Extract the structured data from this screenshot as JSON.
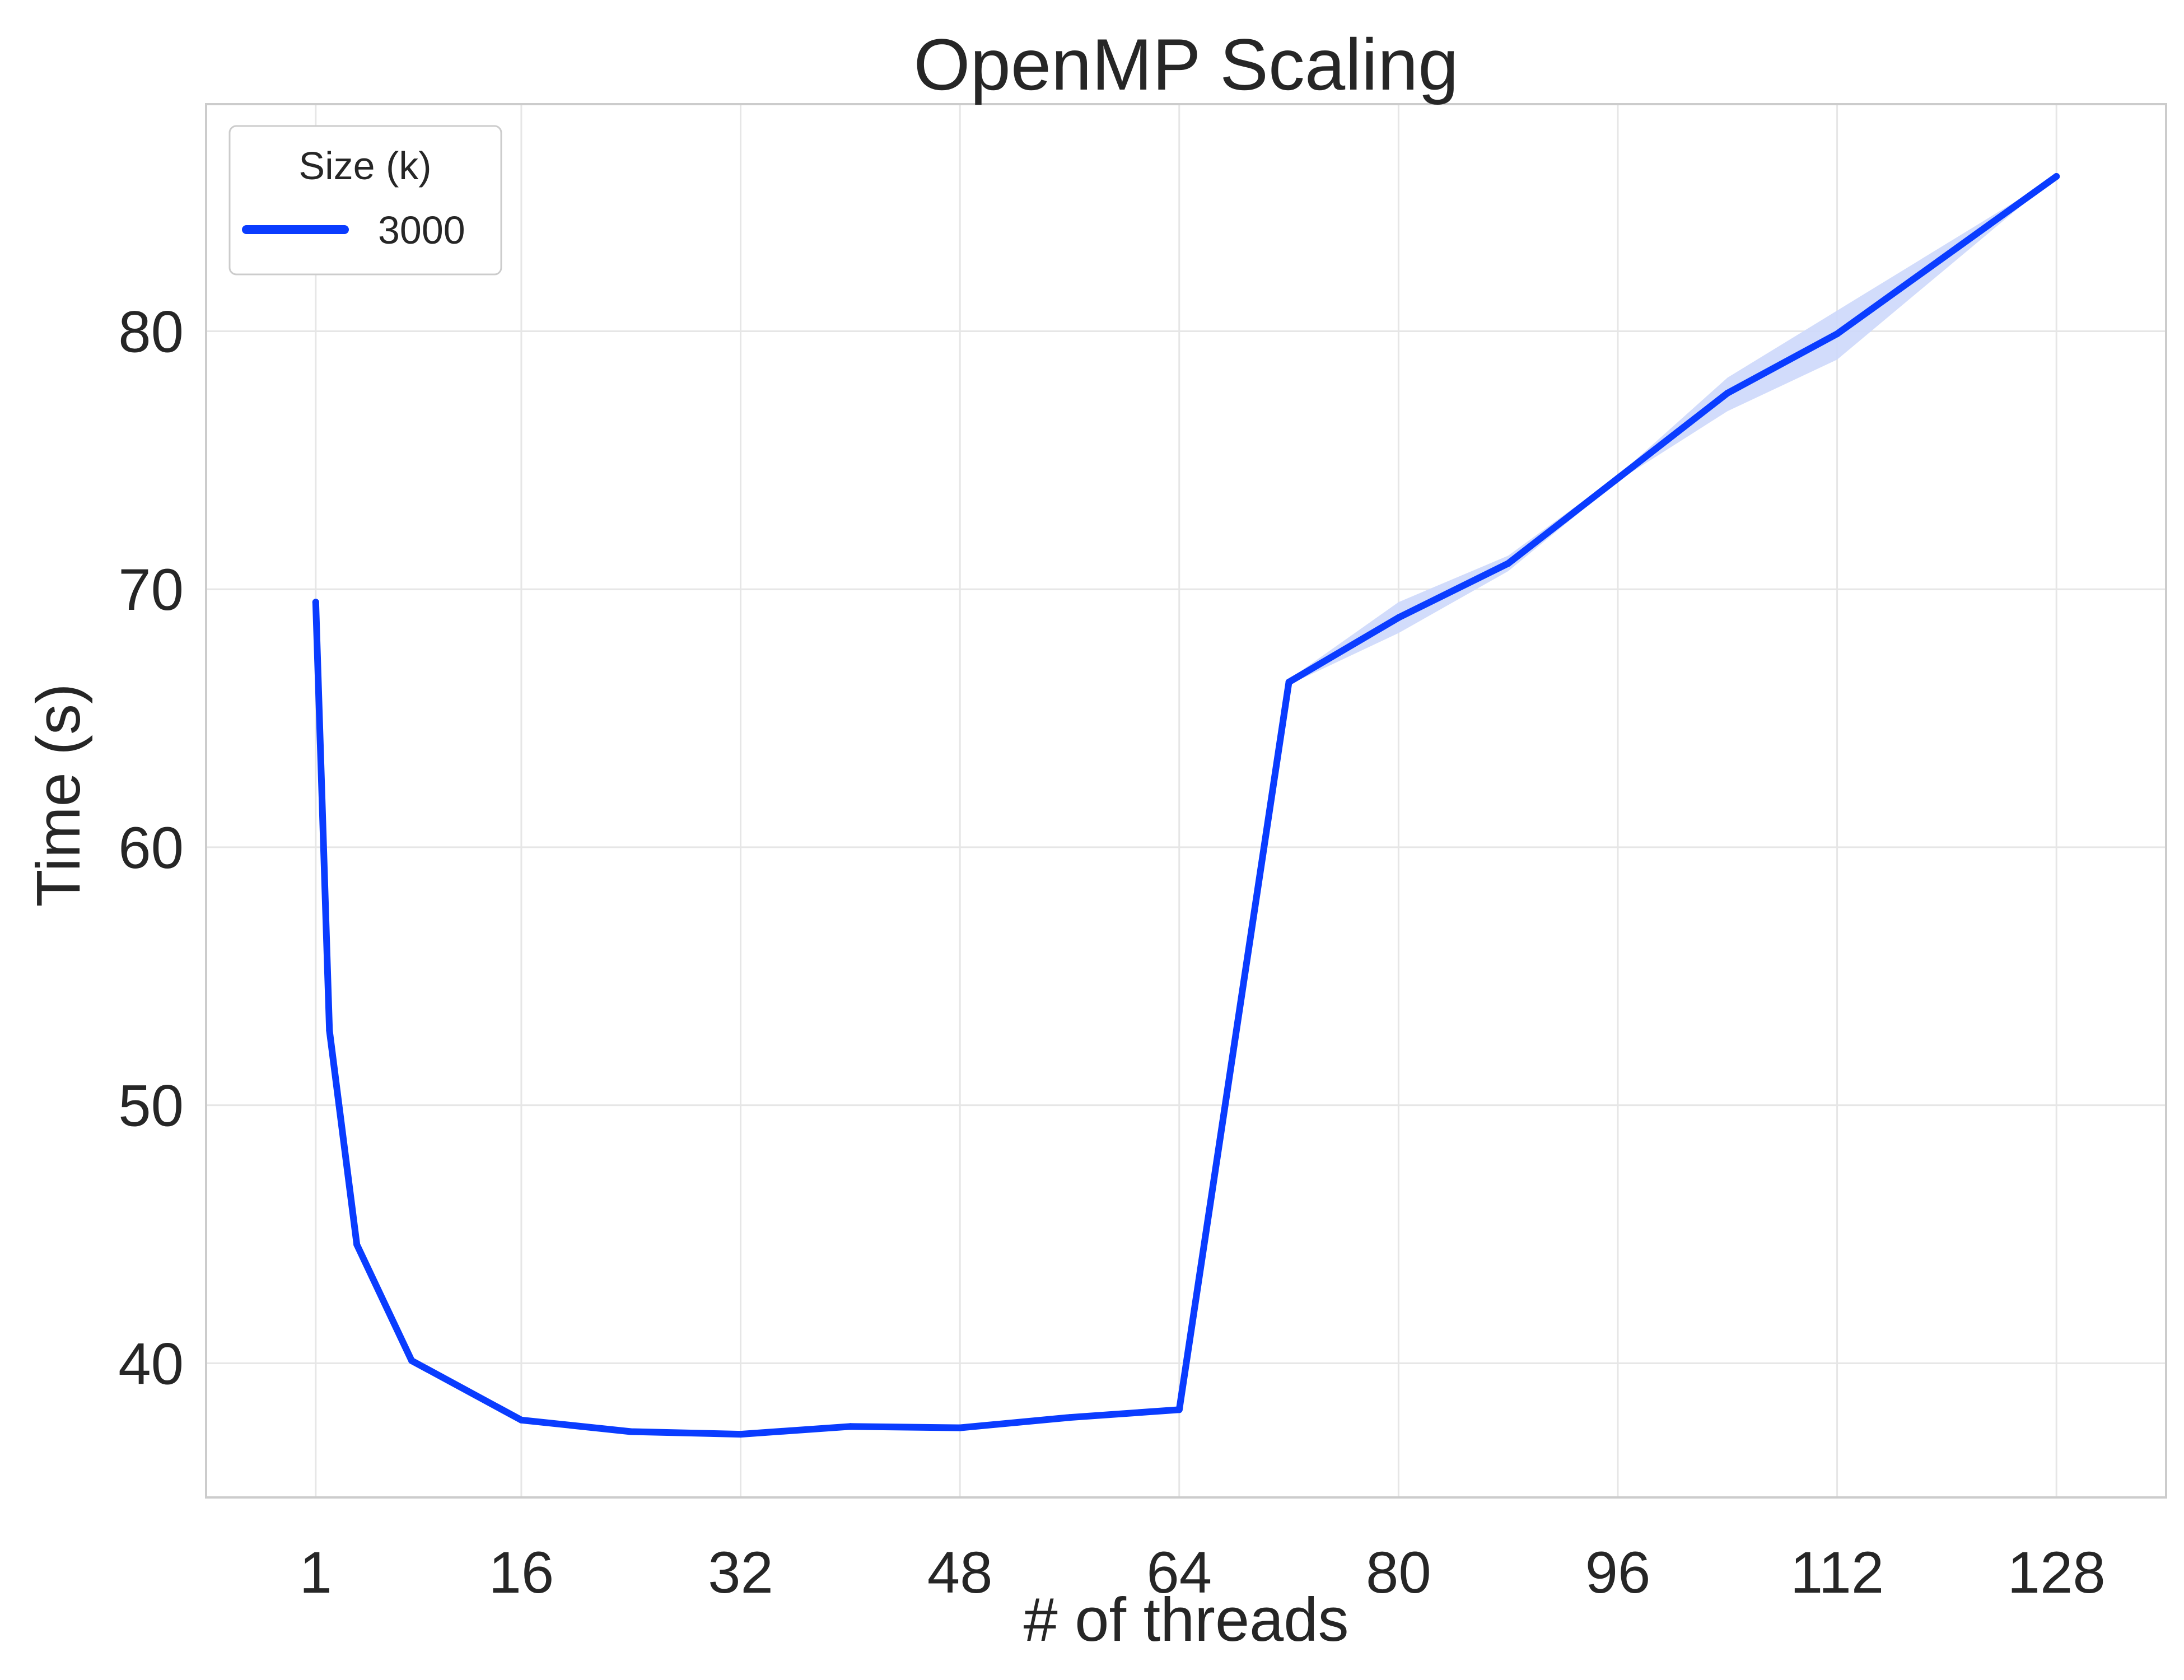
{
  "chart_data": {
    "type": "line",
    "title": "OpenMP Scaling",
    "xlabel": "# of threads",
    "ylabel": "Time (s)",
    "xlim": [
      -7,
      136
    ],
    "ylim": [
      34.8,
      88.8
    ],
    "xticks": [
      1,
      16,
      32,
      48,
      64,
      80,
      96,
      112,
      128
    ],
    "yticks": [
      40,
      50,
      60,
      70,
      80
    ],
    "grid": true,
    "legend": {
      "title": "Size (k)",
      "position": "top-left"
    },
    "series": [
      {
        "name": "3000",
        "color": "#0a3cff",
        "band_color": "#cdd8fb",
        "x": [
          1,
          2,
          4,
          8,
          16,
          24,
          32,
          40,
          48,
          56,
          64,
          72,
          80,
          88,
          96,
          104,
          112,
          128
        ],
        "y": [
          69.5,
          52.9,
          44.6,
          40.1,
          37.8,
          37.35,
          37.25,
          37.55,
          37.5,
          37.9,
          38.2,
          66.4,
          68.9,
          71.0,
          74.3,
          77.6,
          79.9,
          86.0
        ],
        "lo": [
          69.5,
          52.8,
          44.4,
          40.0,
          37.7,
          37.3,
          37.2,
          37.5,
          37.45,
          37.85,
          38.15,
          66.3,
          68.3,
          70.7,
          74.2,
          76.9,
          78.9,
          86.0
        ],
        "hi": [
          69.5,
          53.0,
          44.9,
          40.2,
          37.9,
          37.4,
          37.3,
          37.6,
          37.55,
          37.95,
          38.25,
          66.5,
          69.5,
          71.3,
          74.4,
          78.2,
          80.8,
          86.0
        ]
      }
    ]
  }
}
